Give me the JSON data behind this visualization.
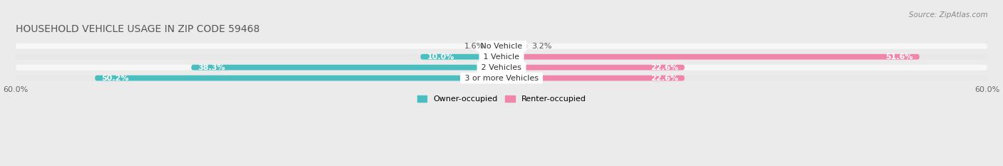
{
  "title": "HOUSEHOLD VEHICLE USAGE IN ZIP CODE 59468",
  "source": "Source: ZipAtlas.com",
  "categories": [
    "No Vehicle",
    "1 Vehicle",
    "2 Vehicles",
    "3 or more Vehicles"
  ],
  "owner_values": [
    1.6,
    10.0,
    38.3,
    50.2
  ],
  "renter_values": [
    3.2,
    51.6,
    22.6,
    22.6
  ],
  "owner_color": "#4BBFBF",
  "renter_color": "#F086AC",
  "owner_label": "Owner-occupied",
  "renter_label": "Renter-occupied",
  "xlim": [
    -60,
    60
  ],
  "bar_height": 0.62,
  "background_color": "#ebebeb",
  "row_bg_light": "#f7f7f7",
  "row_bg_dark": "#e8e8e8",
  "title_fontsize": 10,
  "source_fontsize": 7.5,
  "label_fontsize": 8,
  "category_fontsize": 8
}
